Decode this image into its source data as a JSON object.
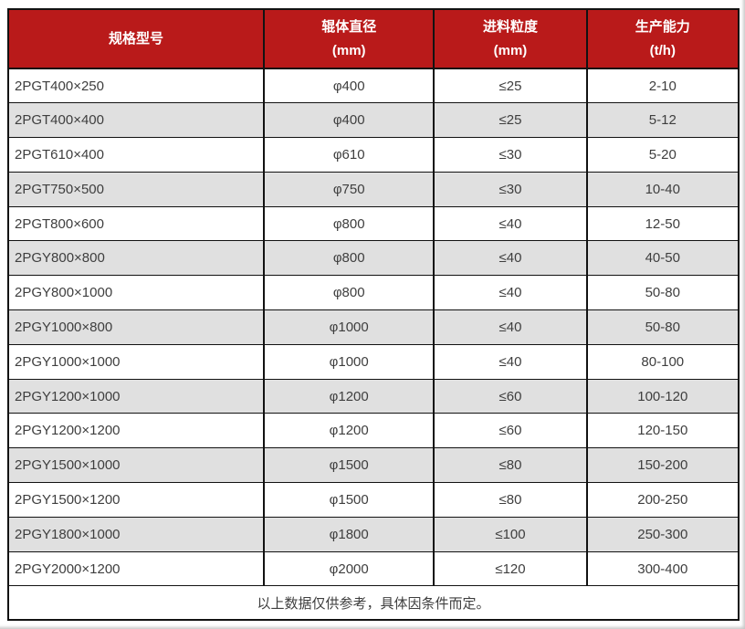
{
  "theme": {
    "header_bg": "#b91a1a",
    "header_text": "#ffffff",
    "row_bg": "#ffffff",
    "row_alt_bg": "#e0e0e0",
    "border_color": "#121212",
    "text_color": "#3e3e3e"
  },
  "table": {
    "columns": [
      {
        "title": "规格型号",
        "unit": ""
      },
      {
        "title": "辊体直径",
        "unit": "(mm)"
      },
      {
        "title": "进料粒度",
        "unit": "(mm)"
      },
      {
        "title": "生产能力",
        "unit": "(t/h)"
      }
    ],
    "rows": [
      [
        "2PGT400×250",
        "φ400",
        "≤25",
        "2-10"
      ],
      [
        "2PGT400×400",
        "φ400",
        "≤25",
        "5-12"
      ],
      [
        "2PGT610×400",
        "φ610",
        "≤30",
        "5-20"
      ],
      [
        "2PGT750×500",
        "φ750",
        "≤30",
        "10-40"
      ],
      [
        "2PGT800×600",
        "φ800",
        "≤40",
        "12-50"
      ],
      [
        "2PGY800×800",
        "φ800",
        "≤40",
        "40-50"
      ],
      [
        "2PGY800×1000",
        "φ800",
        "≤40",
        "50-80"
      ],
      [
        "2PGY1000×800",
        "φ1000",
        "≤40",
        "50-80"
      ],
      [
        "2PGY1000×1000",
        "φ1000",
        "≤40",
        "80-100"
      ],
      [
        "2PGY1200×1000",
        "φ1200",
        "≤60",
        "100-120"
      ],
      [
        "2PGY1200×1200",
        "φ1200",
        "≤60",
        "120-150"
      ],
      [
        "2PGY1500×1000",
        "φ1500",
        "≤80",
        "150-200"
      ],
      [
        "2PGY1500×1200",
        "φ1500",
        "≤80",
        "200-250"
      ],
      [
        "2PGY1800×1000",
        "φ1800",
        "≤100",
        "250-300"
      ],
      [
        "2PGY2000×1200",
        "φ2000",
        "≤120",
        "300-400"
      ]
    ],
    "footer_note": "以上数据仅供参考，具体因条件而定。"
  }
}
